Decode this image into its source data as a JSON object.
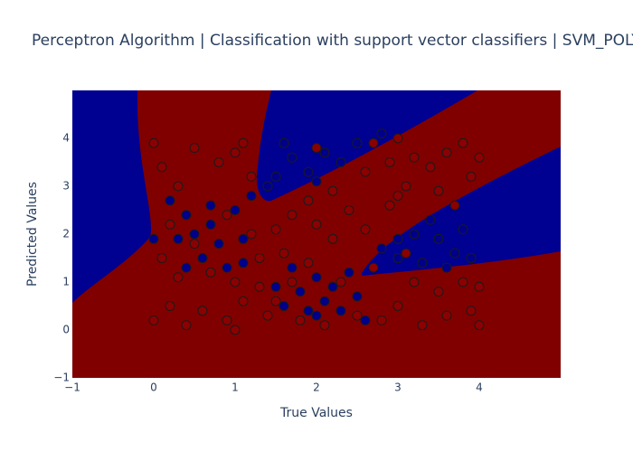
{
  "chart_data": {
    "type": "scatter",
    "title": "Perceptron Algorithm | Classification with support vector classifiers | SVM_POLYNOMIAL",
    "x_label": "True Values",
    "y_label": "Predicted Values",
    "xlim": [
      -1,
      5
    ],
    "ylim": [
      -1,
      5
    ],
    "xticks": [
      {
        "value": -1,
        "label": "−1"
      },
      0,
      1,
      2,
      3,
      4
    ],
    "yticks": [
      {
        "value": -1,
        "label": "−1"
      },
      0,
      1,
      2,
      3,
      4
    ],
    "series": [
      {
        "color": "#8b0000",
        "x": [
          0.0,
          0.1,
          0.3,
          0.5,
          0.8,
          1.0,
          1.2,
          0.2,
          0.4,
          0.6,
          0.9,
          1.1,
          0.0,
          0.3,
          0.7,
          1.0,
          1.3,
          0.1,
          1.5,
          1.7,
          2.0,
          2.2,
          1.6,
          1.9,
          2.4,
          2.6,
          1.4,
          1.8,
          2.1,
          2.5,
          2.8,
          3.0,
          3.3,
          3.6,
          3.9,
          3.2,
          3.5,
          3.8,
          4.0,
          2.9,
          3.1,
          3.4,
          3.6,
          3.8,
          3.9,
          4.0,
          3.2,
          2.9,
          3.0,
          3.5,
          2.2,
          1.9,
          1.2,
          1.3,
          0.9,
          2.7,
          2.3,
          1.0,
          0.5,
          1.7,
          2.0,
          2.7,
          3.0,
          1.1,
          0.2,
          3.7,
          2.6,
          1.5,
          3.1,
          4.0
        ],
        "y": [
          3.9,
          3.4,
          3.0,
          3.8,
          3.5,
          3.7,
          3.2,
          0.5,
          0.1,
          0.4,
          0.2,
          0.6,
          0.2,
          1.1,
          1.2,
          1.0,
          0.9,
          1.5,
          2.1,
          2.4,
          2.2,
          1.9,
          1.6,
          1.4,
          2.5,
          2.1,
          0.3,
          0.2,
          0.1,
          0.3,
          0.2,
          0.5,
          0.1,
          0.3,
          0.4,
          1.0,
          0.8,
          1.0,
          0.9,
          2.6,
          3.0,
          3.4,
          3.7,
          3.9,
          3.2,
          3.6,
          3.6,
          3.5,
          2.8,
          2.9,
          2.9,
          2.7,
          2.0,
          1.5,
          2.4,
          1.3,
          1.0,
          0.0,
          1.8,
          1.0,
          3.8,
          3.9,
          4.0,
          3.9,
          2.2,
          2.6,
          3.3,
          0.6,
          1.6,
          0.1
        ]
      },
      {
        "color": "#00008b",
        "x": [
          0.2,
          0.4,
          0.5,
          0.7,
          0.8,
          1.0,
          1.1,
          0.3,
          0.6,
          0.9,
          1.2,
          0.0,
          0.4,
          0.7,
          1.1,
          1.5,
          1.6,
          1.8,
          1.9,
          2.0,
          2.1,
          2.2,
          2.3,
          2.4,
          2.5,
          2.6,
          1.7,
          2.0,
          1.5,
          1.7,
          1.9,
          2.1,
          2.3,
          2.5,
          1.6,
          2.0,
          2.8,
          1.4,
          2.8,
          3.0,
          3.2,
          3.3,
          3.5,
          3.6,
          3.8,
          3.9,
          3.4,
          3.0,
          3.7
        ],
        "y": [
          2.7,
          2.4,
          2.0,
          2.6,
          1.8,
          2.5,
          1.9,
          1.9,
          1.5,
          1.3,
          2.8,
          1.9,
          1.3,
          2.2,
          1.4,
          0.9,
          0.5,
          0.8,
          0.4,
          1.1,
          0.6,
          0.9,
          0.4,
          1.2,
          0.7,
          0.2,
          1.3,
          0.3,
          3.2,
          3.6,
          3.3,
          3.7,
          3.5,
          3.9,
          3.9,
          3.1,
          4.1,
          3.0,
          1.7,
          1.5,
          2.0,
          1.4,
          1.9,
          1.3,
          2.1,
          1.5,
          2.3,
          1.9,
          1.6
        ]
      }
    ]
  }
}
